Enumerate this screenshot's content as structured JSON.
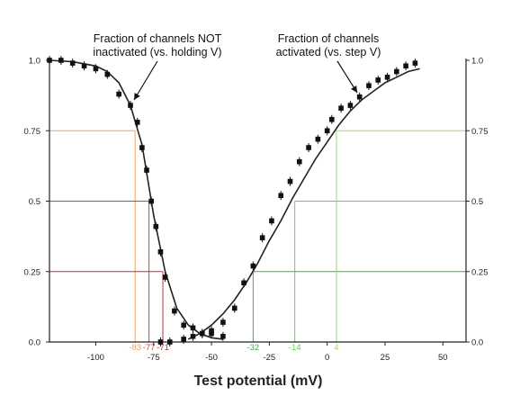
{
  "chart_data": {
    "type": "scatter",
    "xlabel": "Test potential (mV)",
    "xlim": [
      -120,
      60
    ],
    "ylim": [
      0,
      1
    ],
    "x_ticks": [
      -100,
      -75,
      -50,
      -25,
      0,
      25,
      50
    ],
    "x_tick_labels": [
      "-100",
      "-75",
      "-50",
      "-25",
      "0",
      "25",
      "50"
    ],
    "y_ticks_left": [
      1.0,
      0.75,
      0.5,
      0.25,
      0.0
    ],
    "y_tick_labels_left": [
      "1.0",
      "0.75",
      "0.5",
      "0.25",
      "0.0"
    ],
    "y_ticks_right": [
      1.0,
      0.75,
      0.5,
      0.25,
      0.0
    ],
    "y_tick_labels_right": [
      "1.0",
      "0.75",
      "0.5",
      "0.25",
      "0.0"
    ],
    "grid": false,
    "annotations": [
      {
        "text_line1": "Fraction of channels NOT",
        "text_line2": "inactivated (vs. holding V)"
      },
      {
        "text_line1": "Fraction of channels",
        "text_line2": "activated (vs. step V)"
      }
    ],
    "series": [
      {
        "color": "#111111",
        "x": [
          -120,
          -115,
          -110,
          -105,
          -100,
          -95,
          -90,
          -85,
          -82,
          -80,
          -78,
          -76,
          -74,
          -72,
          -70,
          -66,
          -62,
          -58,
          -54,
          -50,
          -45
        ],
        "y": [
          1.0,
          1.0,
          0.99,
          0.98,
          0.97,
          0.95,
          0.88,
          0.84,
          0.78,
          0.69,
          0.61,
          0.5,
          0.41,
          0.32,
          0.23,
          0.11,
          0.06,
          0.05,
          0.03,
          0.03,
          0.02
        ]
      },
      {
        "color": "#111111",
        "x": [
          -72,
          -68,
          -62,
          -58,
          -54,
          -50,
          -45,
          -40,
          -36,
          -32,
          -28,
          -24,
          -20,
          -16,
          -12,
          -8,
          -4,
          0,
          2,
          6,
          10,
          14,
          18,
          22,
          26,
          30,
          34,
          38
        ],
        "y": [
          0.0,
          0.0,
          0.01,
          0.02,
          0.03,
          0.04,
          0.07,
          0.12,
          0.21,
          0.27,
          0.37,
          0.43,
          0.52,
          0.57,
          0.64,
          0.69,
          0.72,
          0.75,
          0.79,
          0.83,
          0.84,
          0.87,
          0.91,
          0.93,
          0.94,
          0.96,
          0.98,
          0.99
        ]
      }
    ],
    "curves": [
      {
        "color": "#222222",
        "x": [
          -120,
          -110,
          -100,
          -95,
          -90,
          -85,
          -80,
          -75,
          -70,
          -65,
          -60,
          -55,
          -50,
          -45
        ],
        "y": [
          1.0,
          0.995,
          0.98,
          0.96,
          0.92,
          0.84,
          0.7,
          0.45,
          0.25,
          0.12,
          0.06,
          0.03,
          0.015,
          0.01
        ]
      },
      {
        "color": "#222222",
        "x": [
          -60,
          -55,
          -50,
          -45,
          -40,
          -35,
          -30,
          -25,
          -20,
          -15,
          -10,
          -5,
          0,
          5,
          10,
          15,
          20,
          25,
          30,
          35,
          40
        ],
        "y": [
          0.01,
          0.03,
          0.06,
          0.1,
          0.15,
          0.21,
          0.28,
          0.36,
          0.43,
          0.51,
          0.58,
          0.65,
          0.71,
          0.77,
          0.82,
          0.86,
          0.89,
          0.92,
          0.94,
          0.96,
          0.97
        ]
      }
    ],
    "reference_lines": [
      {
        "y": 0.75,
        "x": -83,
        "label": "-83",
        "color": "#f0a060",
        "side": "left"
      },
      {
        "y": 0.5,
        "x": -77,
        "label": "-77",
        "color": "#d04040",
        "side": "left"
      },
      {
        "y": 0.25,
        "x": -71,
        "label": "-71",
        "color": "#c03030",
        "side": "left"
      },
      {
        "y": 0.25,
        "x": -32,
        "label": "-32",
        "color": "#44aa44",
        "side": "right"
      },
      {
        "y": 0.5,
        "x": -14,
        "label": "-14",
        "color": "#66cc55",
        "side": "right"
      },
      {
        "y": 0.75,
        "x": 4,
        "label": "4",
        "color": "#99dd66",
        "side": "right"
      }
    ]
  }
}
